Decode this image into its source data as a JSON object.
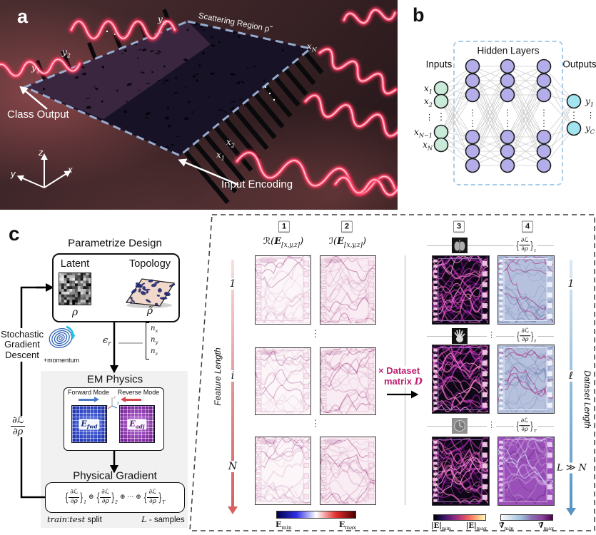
{
  "pa": {
    "label": "a",
    "region": "Scattering Region ρ̃",
    "class_output": "Class Output",
    "input_encoding": "Input Encoding",
    "axes": {
      "x": "x",
      "y": "y",
      "z": "z"
    },
    "ports": {
      "y1": {
        "b": "y",
        "s": "1"
      },
      "y2": {
        "b": "y",
        "s": "2"
      },
      "yc": {
        "b": "y",
        "s": "C"
      },
      "x1": {
        "b": "x",
        "s": "1"
      },
      "x2": {
        "b": "x",
        "s": "2"
      },
      "xn": {
        "b": "x",
        "s": "N"
      }
    }
  },
  "pb": {
    "label": "b",
    "inputs": "Inputs",
    "hidden": "Hidden Layers",
    "outputs": "Outputs",
    "dots": "⋮",
    "in_nodes": [
      {
        "b": "x",
        "s": "1"
      },
      {
        "b": "x",
        "s": "2"
      },
      {
        "b": "x",
        "s": "N−1"
      },
      {
        "b": "x",
        "s": "N"
      }
    ],
    "out_nodes": [
      {
        "b": "y",
        "s": "1"
      },
      {
        "b": "y",
        "s": "C"
      }
    ],
    "colors": {
      "input": "#c9ead9",
      "hidden": "#b3aeea",
      "output": "#a2e4f0"
    }
  },
  "pc": {
    "label": "c",
    "param_title": "Parametrize Design",
    "latent": "Latent",
    "topology": "Topology",
    "rho": "ρ",
    "rho_t": "ρ̃",
    "sgd": [
      "Stochastic",
      "Gradient",
      "Descent"
    ],
    "momentum": "+momentum",
    "eps": {
      "b": "ϵ",
      "s": "r"
    },
    "vec": [
      {
        "b": "n",
        "s": "x"
      },
      {
        "b": "n",
        "s": "y"
      },
      {
        "b": "n",
        "s": "z"
      }
    ],
    "em_title": "EM Physics",
    "fwd": "Forward Mode",
    "rev": "Reverse Mode",
    "efwd": {
      "b": "E",
      "s": "fwd"
    },
    "eadj": {
      "b": "E",
      "s": "adj"
    },
    "phys_title": "Physical Gradient",
    "oplus": "⊕",
    "cdots": "⋯",
    "term_subs": [
      "1",
      "2",
      "T"
    ],
    "tts": {
      "train": "train",
      "colon": ":",
      "test": "test",
      "rest": " split"
    },
    "ls": {
      "l": "L",
      "rest": " - samples"
    }
  },
  "math": {
    "dl": "∂ℒ",
    "dr": "∂ρ"
  },
  "fl": {
    "badges": [
      "1",
      "2",
      "3",
      "4"
    ],
    "h1": {
      "pre": "ℛ(",
      "e": "E",
      "sub": "[x,y,z]",
      "post": ")"
    },
    "h2": {
      "pre": "ℐ(",
      "e": "E",
      "sub": "[x,y,z]",
      "post": ")"
    },
    "feature_axis": {
      "label": "Feature Length",
      "ticks": [
        "1",
        "i",
        "N"
      ]
    },
    "dataset_axis": {
      "label": "Dataset Length",
      "ticks": [
        "1",
        "ℓ",
        "L ≫ N"
      ]
    },
    "matrix": {
      "line1": "× Dataset",
      "line2": "matrix ",
      "d": "D",
      "arrow_color": "#000000",
      "text_color": "#bf2172"
    },
    "row_subs": [
      "1",
      "ℓ",
      "T"
    ],
    "vdots": "⋮",
    "cb": {
      "e": "E",
      "abse": "|E|",
      "grad": "∇̄",
      "min": "min",
      "max": "max"
    }
  }
}
